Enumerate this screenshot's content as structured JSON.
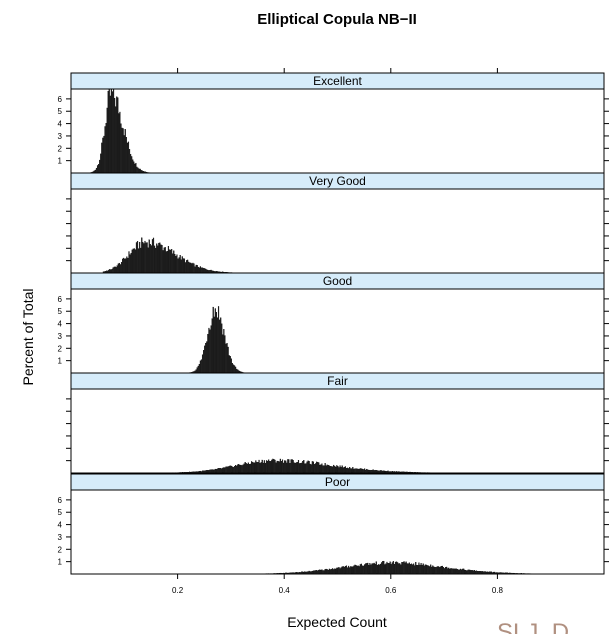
{
  "chart_data": {
    "type": "bar",
    "title": "Elliptical Copula NB−II",
    "xlabel": "Expected Count",
    "ylabel": "Percent of Total",
    "xlim": [
      0,
      1.0
    ],
    "ylim": [
      0,
      6.8
    ],
    "x_ticks": [
      "0.2",
      "0.4",
      "0.6",
      "0.8"
    ],
    "x_tick_values": [
      0.2,
      0.4,
      0.6,
      0.8
    ],
    "y_ticks": [
      "1",
      "2",
      "3",
      "4",
      "5",
      "6"
    ],
    "y_tick_values": [
      1,
      2,
      3,
      4,
      5,
      6
    ],
    "panels": [
      {
        "label": "Excellent",
        "peak_x": 0.075,
        "peak_y": 6.4,
        "sd_left": 0.012,
        "sd_right": 0.022,
        "min_x": 0.035,
        "max_x": 0.16,
        "show_y_labels": true
      },
      {
        "label": "Very Good",
        "peak_x": 0.14,
        "peak_y": 2.5,
        "sd_left": 0.032,
        "sd_right": 0.055,
        "min_x": 0.06,
        "max_x": 0.42,
        "show_y_labels": false
      },
      {
        "label": "Good",
        "peak_x": 0.27,
        "peak_y": 5.2,
        "sd_left": 0.015,
        "sd_right": 0.017,
        "min_x": 0.21,
        "max_x": 0.34,
        "show_y_labels": true
      },
      {
        "label": "Fair",
        "peak_x": 0.38,
        "peak_y": 1.0,
        "sd_left": 0.07,
        "sd_right": 0.11,
        "min_x": 0.1,
        "max_x": 0.88,
        "show_y_labels": false
      },
      {
        "label": "Poor",
        "peak_x": 0.6,
        "peak_y": 0.9,
        "sd_left": 0.09,
        "sd_right": 0.1,
        "min_x": 0.25,
        "max_x": 0.99,
        "show_y_labels": true
      }
    ]
  },
  "watermark": "SLJ_D"
}
